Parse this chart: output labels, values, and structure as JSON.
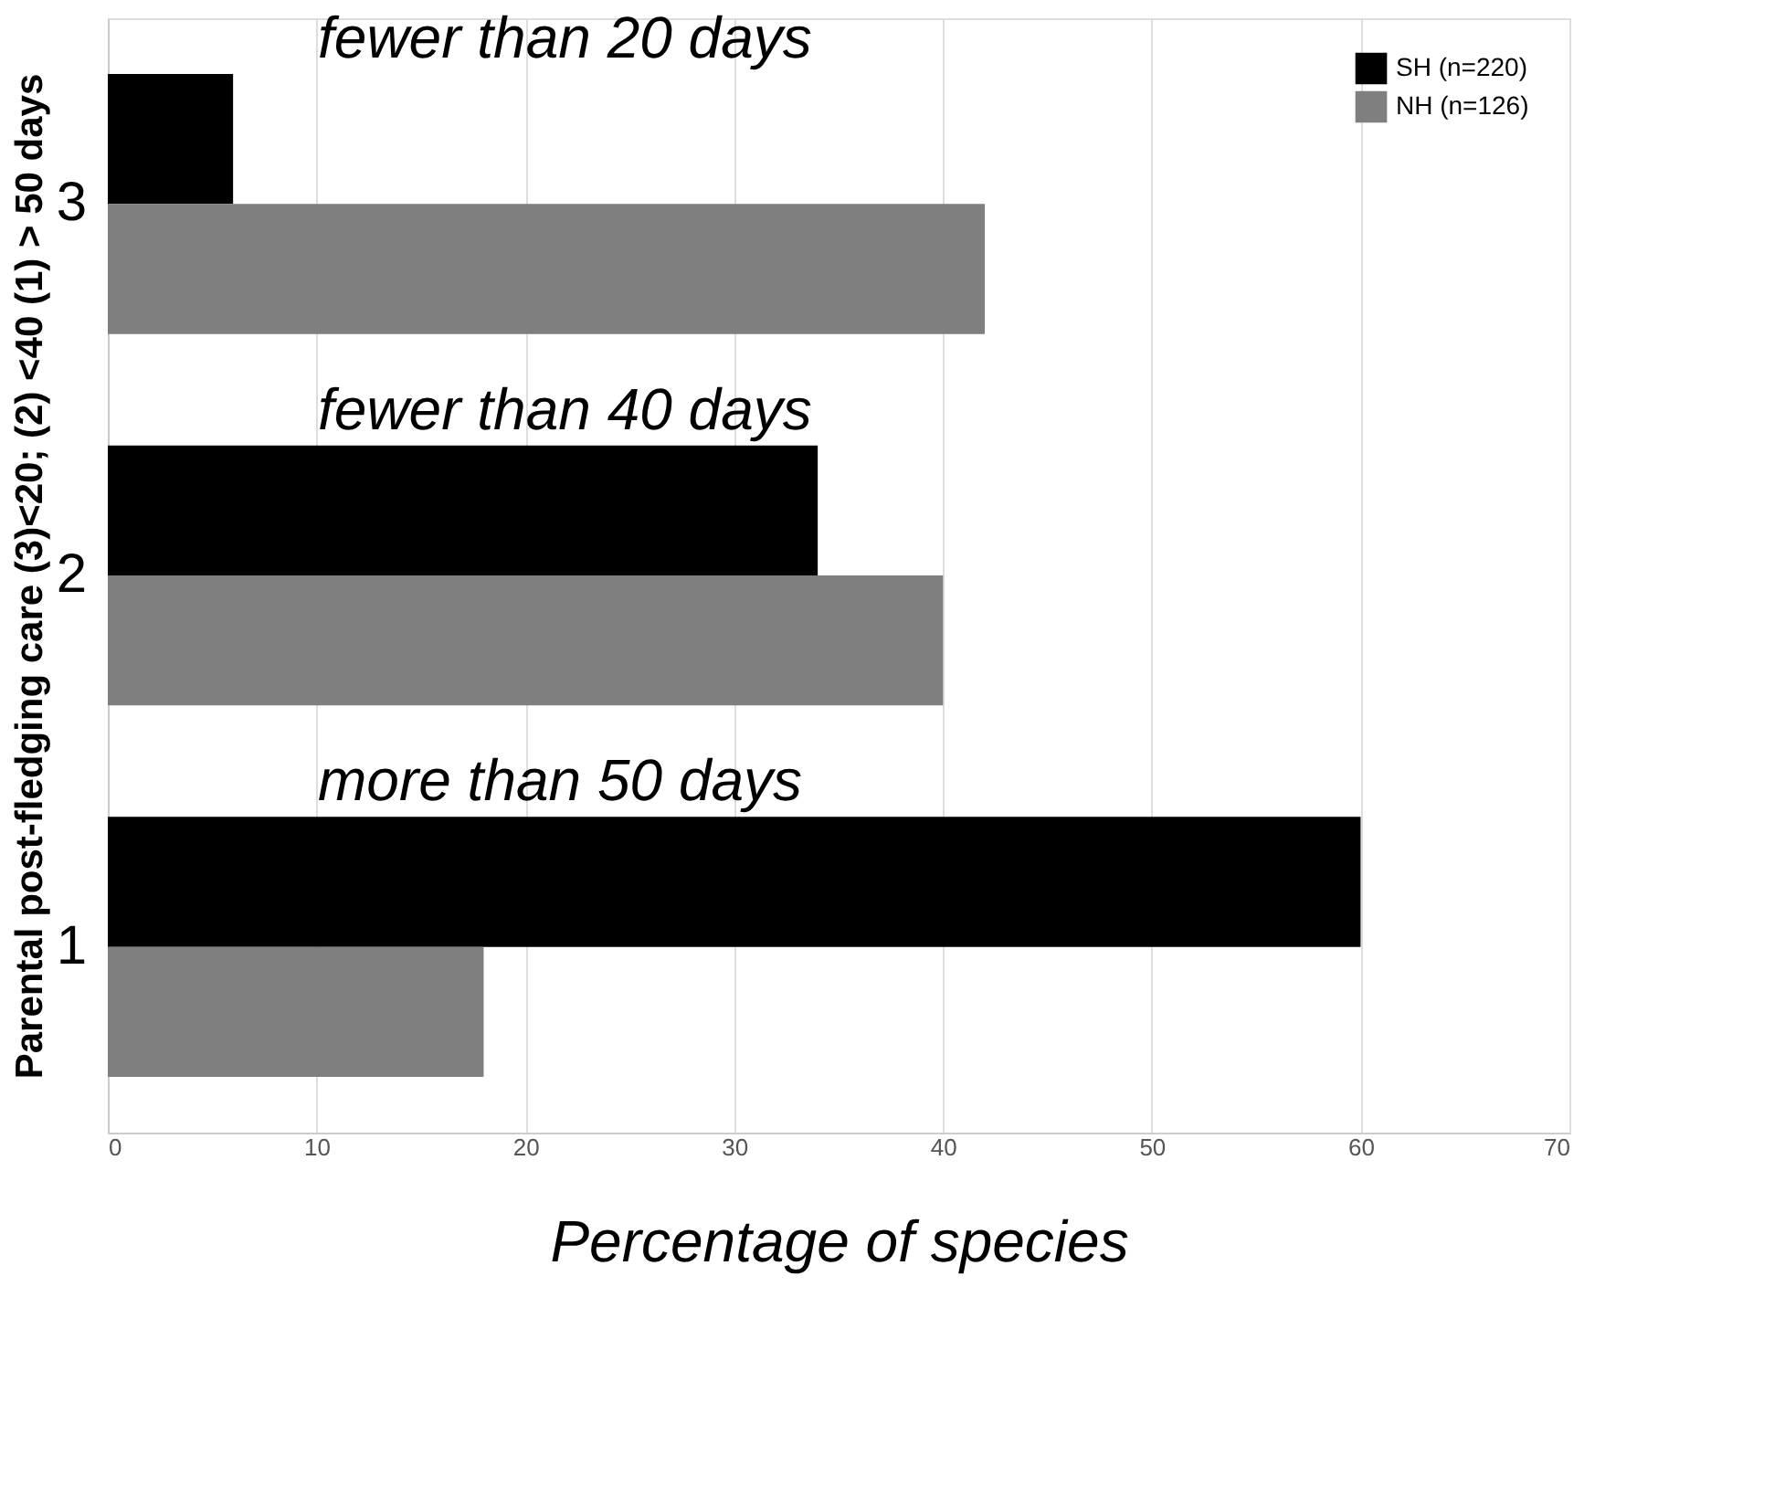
{
  "chart_data": {
    "type": "bar",
    "orientation": "horizontal",
    "xlabel": "Percentage of species",
    "ylabel": "Parental post-fledging care (3)<20; (2) <40 (1) > 50 days",
    "categories": [
      "3",
      "2",
      "1"
    ],
    "series": [
      {
        "name": "SH  (n=220)",
        "color": "#000000",
        "values": [
          6,
          34,
          60
        ]
      },
      {
        "name": "NH  (n=126)",
        "color": "#7f7f7f",
        "values": [
          42,
          40,
          18
        ]
      }
    ],
    "annotations": [
      "fewer than 20 days",
      "fewer than 40 days",
      "more than 50 days"
    ],
    "xlim": [
      0,
      70
    ],
    "xticks": [
      0,
      10,
      20,
      30,
      40,
      50,
      60,
      70
    ],
    "grid": "x",
    "legend": "top right"
  }
}
